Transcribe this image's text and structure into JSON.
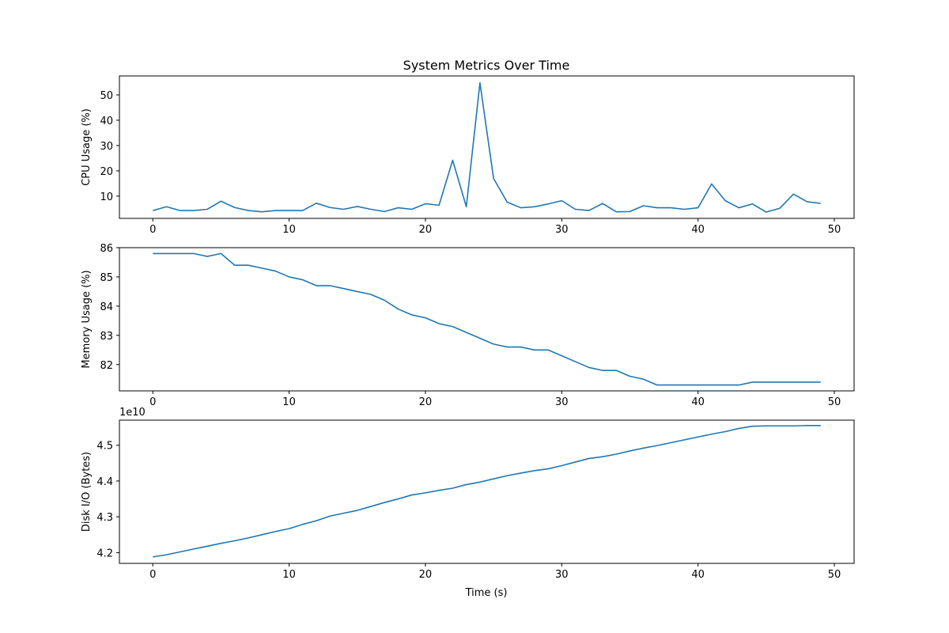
{
  "figure": {
    "title": "System Metrics Over Time",
    "xlabel": "Time (s)"
  },
  "chart_data": [
    {
      "type": "line",
      "title": "System Metrics Over Time",
      "xlabel": "",
      "ylabel": "CPU Usage (%)",
      "xlim": [
        -2.45,
        51.45
      ],
      "ylim": [
        1.2,
        57.5
      ],
      "xticks": [
        0,
        10,
        20,
        30,
        40,
        50
      ],
      "yticks": [
        10,
        20,
        30,
        40,
        50
      ],
      "tick_labels_x": [
        "0",
        "10",
        "20",
        "30",
        "40",
        "50"
      ],
      "tick_labels_y": [
        "10",
        "20",
        "30",
        "40",
        "50"
      ],
      "offset_label": "",
      "grid": false,
      "color": "#1f77b4",
      "x": [
        0,
        1,
        2,
        3,
        4,
        5,
        6,
        7,
        8,
        9,
        10,
        11,
        12,
        13,
        14,
        15,
        16,
        17,
        18,
        19,
        20,
        21,
        22,
        23,
        24,
        25,
        26,
        27,
        28,
        29,
        30,
        31,
        32,
        33,
        34,
        35,
        36,
        37,
        38,
        39,
        40,
        41,
        42,
        43,
        44,
        45,
        46,
        47,
        48,
        49
      ],
      "y": [
        4.3,
        5.8,
        4.3,
        4.3,
        4.8,
        8.0,
        5.5,
        4.3,
        3.8,
        4.3,
        4.3,
        4.3,
        7.2,
        5.5,
        4.8,
        5.9,
        4.8,
        3.9,
        5.4,
        4.8,
        7.0,
        6.4,
        24.2,
        5.8,
        54.8,
        17.0,
        7.6,
        5.4,
        5.8,
        6.9,
        8.2,
        4.8,
        4.3,
        7.1,
        3.8,
        3.9,
        6.2,
        5.4,
        5.4,
        4.8,
        5.4,
        14.8,
        8.2,
        5.4,
        6.9,
        3.7,
        5.2,
        10.8,
        7.8,
        7.1
      ]
    },
    {
      "type": "line",
      "title": "",
      "xlabel": "",
      "ylabel": "Memory Usage (%)",
      "xlim": [
        -2.45,
        51.45
      ],
      "ylim": [
        81.1,
        86.0
      ],
      "xticks": [
        0,
        10,
        20,
        30,
        40,
        50
      ],
      "yticks": [
        82,
        83,
        84,
        85,
        86
      ],
      "tick_labels_x": [
        "0",
        "10",
        "20",
        "30",
        "40",
        "50"
      ],
      "tick_labels_y": [
        "82",
        "83",
        "84",
        "85",
        "86"
      ],
      "offset_label": "",
      "grid": false,
      "color": "#1f77b4",
      "x": [
        0,
        1,
        2,
        3,
        4,
        5,
        6,
        7,
        8,
        9,
        10,
        11,
        12,
        13,
        14,
        15,
        16,
        17,
        18,
        19,
        20,
        21,
        22,
        23,
        24,
        25,
        26,
        27,
        28,
        29,
        30,
        31,
        32,
        33,
        34,
        35,
        36,
        37,
        38,
        39,
        40,
        41,
        42,
        43,
        44,
        45,
        46,
        47,
        48,
        49
      ],
      "y": [
        85.8,
        85.8,
        85.8,
        85.8,
        85.7,
        85.8,
        85.4,
        85.4,
        85.3,
        85.2,
        85.0,
        84.9,
        84.7,
        84.7,
        84.6,
        84.5,
        84.4,
        84.2,
        83.9,
        83.7,
        83.6,
        83.4,
        83.3,
        83.1,
        82.9,
        82.7,
        82.6,
        82.6,
        82.5,
        82.5,
        82.3,
        82.1,
        81.9,
        81.8,
        81.8,
        81.6,
        81.5,
        81.3,
        81.3,
        81.3,
        81.3,
        81.3,
        81.3,
        81.3,
        81.4,
        81.4,
        81.4,
        81.4,
        81.4,
        81.4
      ]
    },
    {
      "type": "line",
      "title": "",
      "xlabel": "Time (s)",
      "ylabel": "Disk I/O (Bytes)",
      "xlim": [
        -2.45,
        51.45
      ],
      "ylim": [
        4.17,
        4.57
      ],
      "xticks": [
        0,
        10,
        20,
        30,
        40,
        50
      ],
      "yticks": [
        4.2,
        4.3,
        4.4,
        4.5
      ],
      "tick_labels_x": [
        "0",
        "10",
        "20",
        "30",
        "40",
        "50"
      ],
      "tick_labels_y": [
        "4.2",
        "4.3",
        "4.4",
        "4.5"
      ],
      "offset_label": "1e10",
      "grid": false,
      "color": "#1f77b4",
      "x": [
        0,
        1,
        2,
        3,
        4,
        5,
        6,
        7,
        8,
        9,
        10,
        11,
        12,
        13,
        14,
        15,
        16,
        17,
        18,
        19,
        20,
        21,
        22,
        23,
        24,
        25,
        26,
        27,
        28,
        29,
        30,
        31,
        32,
        33,
        34,
        35,
        36,
        37,
        38,
        39,
        40,
        41,
        42,
        43,
        44,
        45,
        46,
        47,
        48,
        49
      ],
      "y": [
        4.188,
        4.194,
        4.202,
        4.21,
        4.218,
        4.226,
        4.233,
        4.241,
        4.25,
        4.259,
        4.267,
        4.279,
        4.289,
        4.302,
        4.31,
        4.318,
        4.329,
        4.34,
        4.35,
        4.361,
        4.367,
        4.374,
        4.38,
        4.39,
        4.397,
        4.406,
        4.415,
        4.422,
        4.429,
        4.434,
        4.443,
        4.453,
        4.463,
        4.468,
        4.475,
        4.484,
        4.492,
        4.499,
        4.507,
        4.515,
        4.523,
        4.531,
        4.538,
        4.547,
        4.553,
        4.554,
        4.554,
        4.554,
        4.555,
        4.555
      ]
    }
  ]
}
